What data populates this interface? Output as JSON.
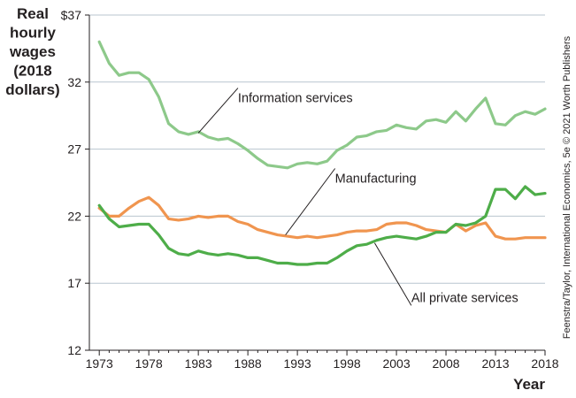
{
  "chart_data": {
    "type": "line",
    "title": "",
    "ylabel_lines": [
      "Real",
      "hourly",
      "wages",
      "(2018",
      "dollars)"
    ],
    "xlabel": "Year",
    "ytick_labels": [
      "$37",
      "32",
      "27",
      "22",
      "17",
      "12"
    ],
    "yticks": [
      37,
      32,
      27,
      22,
      17,
      12
    ],
    "xticks": [
      1973,
      1978,
      1983,
      1988,
      1993,
      1998,
      2003,
      2008,
      2013,
      2018
    ],
    "ylim": [
      12,
      37
    ],
    "xlim": [
      1972,
      2018
    ],
    "grid": true,
    "credit": "Feenstra/Taylor, International Economics, 5e © 2021 Worth Publishers",
    "x": [
      1973,
      1974,
      1975,
      1976,
      1977,
      1978,
      1979,
      1980,
      1981,
      1982,
      1983,
      1984,
      1985,
      1986,
      1987,
      1988,
      1989,
      1990,
      1991,
      1992,
      1993,
      1994,
      1995,
      1996,
      1997,
      1998,
      1999,
      2000,
      2001,
      2002,
      2003,
      2004,
      2005,
      2006,
      2007,
      2008,
      2009,
      2010,
      2011,
      2012,
      2013,
      2014,
      2015,
      2016,
      2017,
      2018
    ],
    "series": [
      {
        "name": "Information services",
        "color": "#8dc98a",
        "values": [
          35.0,
          33.4,
          32.5,
          32.7,
          32.7,
          32.2,
          30.9,
          28.9,
          28.3,
          28.1,
          28.3,
          27.9,
          27.7,
          27.8,
          27.4,
          26.9,
          26.3,
          25.8,
          25.7,
          25.6,
          25.9,
          26.0,
          25.9,
          26.1,
          26.9,
          27.3,
          27.9,
          28.0,
          28.3,
          28.4,
          28.8,
          28.6,
          28.5,
          29.1,
          29.2,
          29.0,
          29.8,
          29.1,
          30.0,
          30.8,
          28.9,
          28.8,
          29.5,
          29.8,
          29.6,
          30.0
        ]
      },
      {
        "name": "Manufacturing",
        "color": "#f0954f",
        "values": [
          22.6,
          22.0,
          22.0,
          22.6,
          23.1,
          23.4,
          22.8,
          21.8,
          21.7,
          21.8,
          22.0,
          21.9,
          22.0,
          22.0,
          21.6,
          21.4,
          21.0,
          20.8,
          20.6,
          20.5,
          20.4,
          20.5,
          20.4,
          20.5,
          20.6,
          20.8,
          20.9,
          20.9,
          21.0,
          21.4,
          21.5,
          21.5,
          21.3,
          21.0,
          20.9,
          20.8,
          21.4,
          20.9,
          21.3,
          21.5,
          20.5,
          20.3,
          20.3,
          20.4,
          20.4,
          20.4
        ]
      },
      {
        "name": "All private services",
        "color": "#4ead49",
        "values": [
          22.8,
          21.8,
          21.2,
          21.3,
          21.4,
          21.4,
          20.6,
          19.6,
          19.2,
          19.1,
          19.4,
          19.2,
          19.1,
          19.2,
          19.1,
          18.9,
          18.9,
          18.7,
          18.5,
          18.5,
          18.4,
          18.4,
          18.5,
          18.5,
          18.9,
          19.4,
          19.8,
          19.9,
          20.2,
          20.4,
          20.5,
          20.4,
          20.3,
          20.5,
          20.8,
          20.8,
          21.4,
          21.3,
          21.5,
          22.0,
          24.0,
          24.0,
          23.3,
          24.2,
          23.6,
          23.7
        ]
      }
    ],
    "annotations": [
      {
        "series": 0,
        "text": "Information services",
        "anchor_x": 1983,
        "anchor_y": 28.2,
        "label_x": 1987,
        "label_y": 30.5
      },
      {
        "series": 1,
        "text": "Manufacturing",
        "anchor_x": 1991.8,
        "anchor_y": 20.6,
        "label_x": 1996.8,
        "label_y": 24.5
      },
      {
        "series": 2,
        "text": "All private services",
        "anchor_x": 2000.8,
        "anchor_y": 20.0,
        "label_x": 2004.5,
        "label_y": 15.6
      }
    ]
  }
}
